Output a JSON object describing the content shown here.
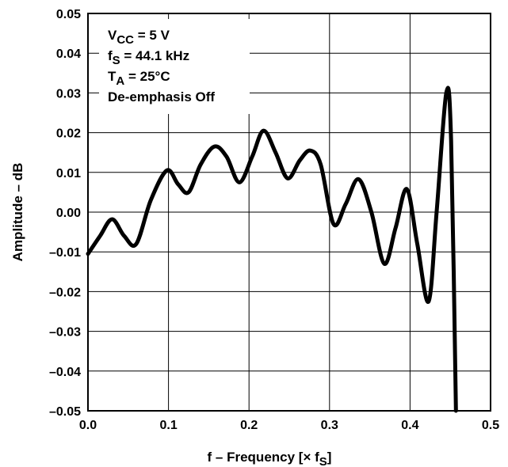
{
  "chart_data": {
    "type": "line",
    "xlabel": "f – Frequency [× fS]",
    "ylabel": "Amplitude – dB",
    "xlim": [
      0.0,
      0.5
    ],
    "ylim": [
      -0.05,
      0.05
    ],
    "grid": true,
    "x_ticks": [
      "0.0",
      "0.1",
      "0.2",
      "0.3",
      "0.4",
      "0.5"
    ],
    "y_ticks": [
      "0.05",
      "0.04",
      "0.03",
      "0.02",
      "0.01",
      "0.00",
      "–0.01",
      "–0.02",
      "–0.03",
      "–0.04",
      "–0.05"
    ],
    "annotations": [
      "VCC = 5 V",
      "fS = 44.1 kHz",
      "TA = 25°C",
      "De-emphasis Off"
    ],
    "series": [
      {
        "x": [
          0.0,
          0.015,
          0.03,
          0.045,
          0.06,
          0.078,
          0.098,
          0.112,
          0.125,
          0.14,
          0.157,
          0.172,
          0.188,
          0.204,
          0.218,
          0.233,
          0.248,
          0.263,
          0.276,
          0.289,
          0.305,
          0.32,
          0.336,
          0.352,
          0.368,
          0.382,
          0.396,
          0.409,
          0.423,
          0.433,
          0.445,
          0.451,
          0.457
        ],
        "y": [
          -0.0105,
          -0.006,
          -0.0018,
          -0.006,
          -0.008,
          0.003,
          0.0105,
          0.007,
          0.005,
          0.012,
          0.0165,
          0.014,
          0.0075,
          0.014,
          0.0205,
          0.015,
          0.0085,
          0.013,
          0.0155,
          0.012,
          -0.003,
          0.002,
          0.0083,
          0.0,
          -0.013,
          -0.004,
          0.0058,
          -0.008,
          -0.0225,
          0.0,
          0.03,
          0.018,
          -0.05
        ]
      }
    ]
  }
}
